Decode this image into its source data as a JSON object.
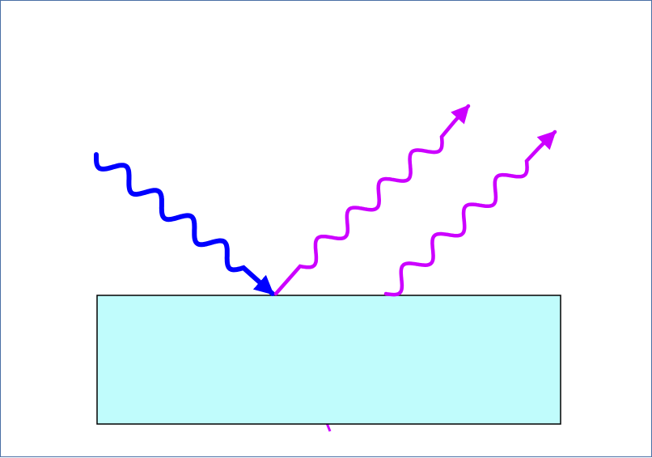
{
  "diagram": {
    "colors": {
      "frame_border": "#4a6fa5",
      "incident_wave": "#0000ff",
      "emitted_wave": "#cc00ff",
      "slab_fill": "#c0fcfc",
      "slab_border": "#000000",
      "background": "#ffffff"
    },
    "elements": {
      "incident_wave": "wavy-arrow",
      "reflected_wave": "wavy-arrow",
      "emitted_wave": "wavy-arrow",
      "slab": "rectangle"
    }
  }
}
